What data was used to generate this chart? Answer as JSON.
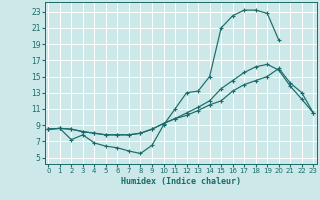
{
  "xlabel": "Humidex (Indice chaleur)",
  "bg_color": "#cce8e8",
  "grid_color": "#b8d8d8",
  "line_color": "#1a6b6b",
  "x_ticks": [
    0,
    1,
    2,
    3,
    4,
    5,
    6,
    7,
    8,
    9,
    10,
    11,
    12,
    13,
    14,
    15,
    16,
    17,
    18,
    19,
    20,
    21,
    22,
    23
  ],
  "y_ticks": [
    5,
    7,
    9,
    11,
    13,
    15,
    17,
    19,
    21,
    23
  ],
  "xlim": [
    -0.3,
    23.3
  ],
  "ylim": [
    4.2,
    24.2
  ],
  "curve1_x": [
    0,
    1,
    2,
    3,
    4,
    5,
    6,
    7,
    8,
    9,
    10,
    11,
    12,
    13,
    14,
    15,
    16,
    17,
    18,
    19,
    20,
    21,
    22,
    23
  ],
  "curve1_y": [
    8.5,
    8.6,
    7.2,
    7.8,
    6.8,
    6.4,
    6.2,
    5.8,
    5.5,
    6.5,
    9.0,
    11.0,
    13.0,
    13.2,
    15.0,
    21.0,
    22.5,
    23.2,
    23.2,
    22.8,
    19.5,
    null,
    null,
    null
  ],
  "curve2_x": [
    0,
    1,
    2,
    3,
    4,
    5,
    6,
    7,
    8,
    9,
    10,
    11,
    12,
    13,
    14,
    15,
    16,
    17,
    18,
    19,
    20,
    21,
    22,
    23
  ],
  "curve2_y": [
    8.5,
    8.6,
    8.5,
    8.2,
    8.0,
    7.8,
    7.8,
    7.8,
    8.0,
    8.5,
    9.2,
    9.8,
    10.5,
    11.2,
    12.0,
    13.5,
    14.5,
    15.5,
    16.2,
    16.5,
    15.8,
    13.8,
    12.2,
    10.5
  ],
  "curve3_x": [
    0,
    1,
    2,
    3,
    4,
    5,
    6,
    7,
    8,
    9,
    10,
    11,
    12,
    13,
    14,
    15,
    16,
    17,
    18,
    19,
    20,
    21,
    22,
    23
  ],
  "curve3_y": [
    8.5,
    8.6,
    8.5,
    8.2,
    8.0,
    7.8,
    7.8,
    7.8,
    8.0,
    8.5,
    9.2,
    9.8,
    10.2,
    10.8,
    11.5,
    12.0,
    13.2,
    14.0,
    14.5,
    15.0,
    16.0,
    14.2,
    13.0,
    10.5
  ]
}
